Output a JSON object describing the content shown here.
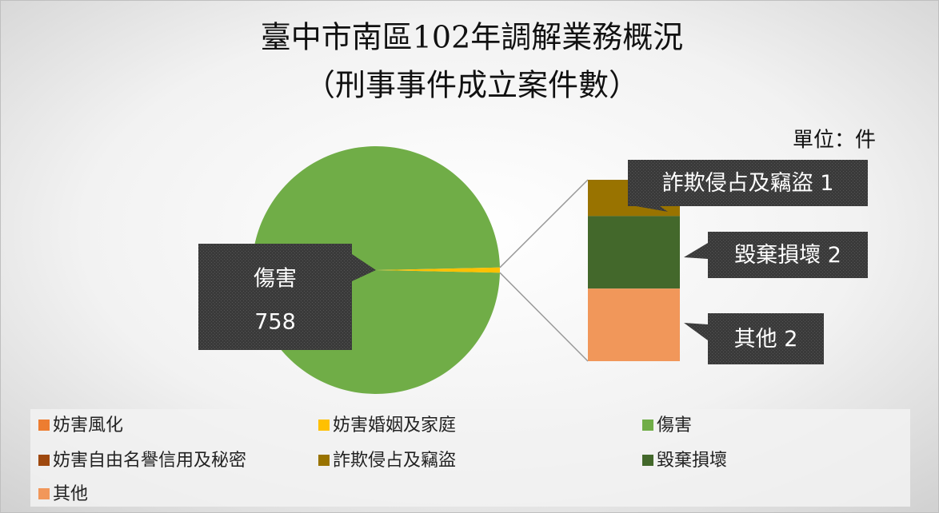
{
  "chart_data": {
    "type": "bar-of-pie",
    "title": "臺中市南區102年調解業務概況",
    "subtitle": "（刑事事件成立案件數）",
    "unit_label": "單位：件",
    "categories": [
      "妨害風化",
      "妨害婚姻及家庭",
      "傷害",
      "妨害自由名譽信用及秘密",
      "詐欺侵占及竊盜",
      "毀棄損壞",
      "其他"
    ],
    "values": [
      0,
      0,
      758,
      0,
      1,
      2,
      2
    ],
    "colors": [
      "#ed7d31",
      "#ffc000",
      "#70ad47",
      "#9e480e",
      "#997300",
      "#43682b",
      "#f1975a"
    ],
    "other_color": "#ffc000",
    "legend": "bottom"
  }
}
